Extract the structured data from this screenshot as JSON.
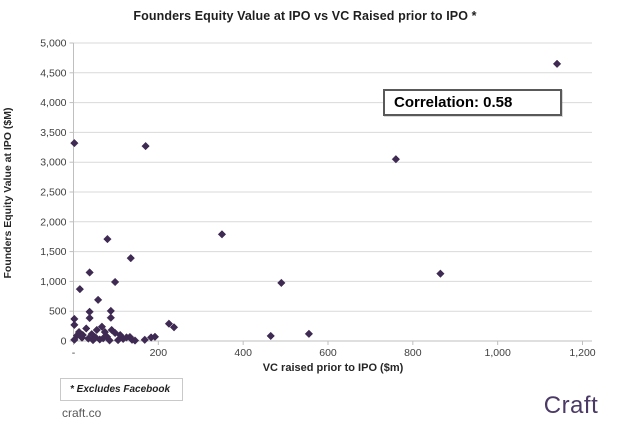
{
  "title": "Founders Equity Value at IPO vs VC Raised prior to IPO *",
  "annotations": {
    "correlation": "Correlation: 0.58",
    "footnote": "* Excludes Facebook"
  },
  "footer": {
    "source": "craft.co",
    "logo_text": "Craft"
  },
  "colors": {
    "marker": "#3e2a52",
    "grid": "#d9d9d9",
    "axis": "#bfbfbf",
    "tick_text": "#595959",
    "logo": "#4b3a66"
  },
  "chart_data": {
    "type": "scatter",
    "title": "Founders Equity Value at IPO vs VC Raised prior to IPO *",
    "xlabel": "VC raised prior to IPO ($m)",
    "ylabel": "Founders Equity Value at IPO ($M)",
    "xlim": [
      0,
      1200
    ],
    "ylim": [
      0,
      5000
    ],
    "grid": "horizontal-only",
    "legend": "none",
    "x_ticks": [
      {
        "value": 0,
        "label": "-"
      },
      {
        "value": 200,
        "label": "200"
      },
      {
        "value": 400,
        "label": "400"
      },
      {
        "value": 600,
        "label": "600"
      },
      {
        "value": 800,
        "label": "800"
      },
      {
        "value": 1000,
        "label": "1,000"
      },
      {
        "value": 1200,
        "label": "1,200"
      }
    ],
    "y_ticks": [
      {
        "value": 0,
        "label": "0"
      },
      {
        "value": 500,
        "label": "500"
      },
      {
        "value": 1000,
        "label": "1,000"
      },
      {
        "value": 1500,
        "label": "1,500"
      },
      {
        "value": 2000,
        "label": "2,000"
      },
      {
        "value": 2500,
        "label": "2,500"
      },
      {
        "value": 3000,
        "label": "3,000"
      },
      {
        "value": 3500,
        "label": "3,500"
      },
      {
        "value": 4000,
        "label": "4,000"
      },
      {
        "value": 4500,
        "label": "4,500"
      },
      {
        "value": 5000,
        "label": "5,000"
      }
    ],
    "points": [
      [
        2,
        3320
      ],
      [
        170,
        3270
      ],
      [
        760,
        3050
      ],
      [
        1140,
        4650
      ],
      [
        350,
        1790
      ],
      [
        865,
        1130
      ],
      [
        490,
        975
      ],
      [
        80,
        1710
      ],
      [
        135,
        1390
      ],
      [
        38,
        1150
      ],
      [
        98,
        990
      ],
      [
        15,
        870
      ],
      [
        58,
        690
      ],
      [
        38,
        490
      ],
      [
        38,
        385
      ],
      [
        88,
        505
      ],
      [
        88,
        390
      ],
      [
        2,
        370
      ],
      [
        2,
        270
      ],
      [
        2,
        20
      ],
      [
        8,
        90
      ],
      [
        13,
        150
      ],
      [
        20,
        55
      ],
      [
        22,
        100
      ],
      [
        30,
        210
      ],
      [
        35,
        40
      ],
      [
        43,
        115
      ],
      [
        46,
        15
      ],
      [
        52,
        60
      ],
      [
        55,
        185
      ],
      [
        62,
        25
      ],
      [
        67,
        240
      ],
      [
        70,
        45
      ],
      [
        74,
        150
      ],
      [
        79,
        70
      ],
      [
        85,
        10
      ],
      [
        90,
        185
      ],
      [
        98,
        135
      ],
      [
        105,
        15
      ],
      [
        110,
        100
      ],
      [
        117,
        35
      ],
      [
        125,
        60
      ],
      [
        133,
        67
      ],
      [
        138,
        20
      ],
      [
        145,
        8
      ],
      [
        168,
        20
      ],
      [
        183,
        60
      ],
      [
        192,
        70
      ],
      [
        225,
        290
      ],
      [
        237,
        230
      ],
      [
        465,
        85
      ],
      [
        555,
        120
      ]
    ]
  }
}
